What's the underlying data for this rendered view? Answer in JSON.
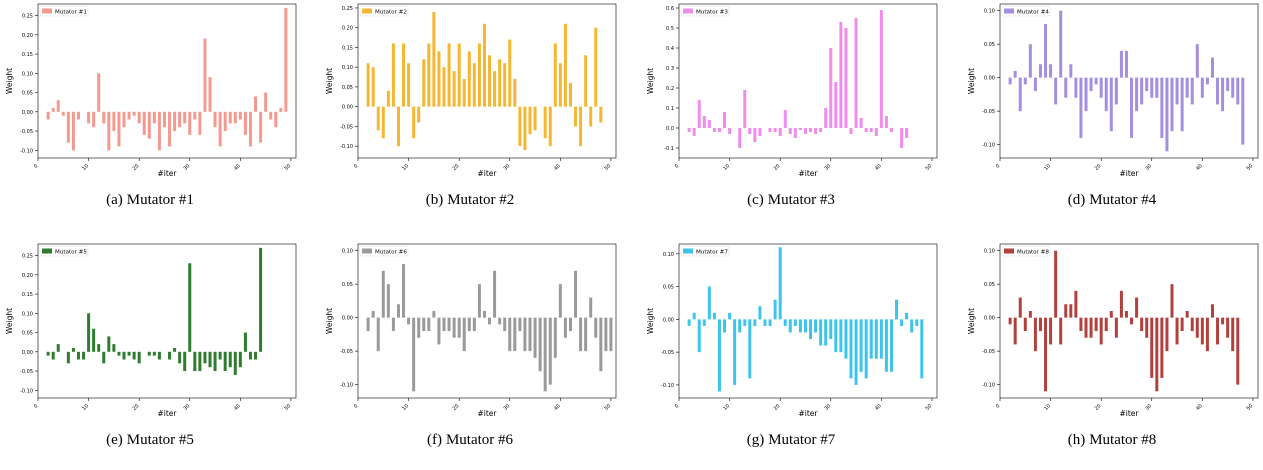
{
  "chart_data": [
    {
      "type": "bar",
      "caption_prefix": "(a)",
      "caption": "Mutator #1",
      "legend": "Mutator #1",
      "color": "#f4998e",
      "xlabel": "#iter",
      "ylabel": "Weight",
      "xlim": [
        0,
        51
      ],
      "ylim": [
        -0.12,
        0.28
      ],
      "xticks": [
        "0",
        "10",
        "20",
        "30",
        "40",
        "50"
      ],
      "yticks": [
        "-0.10",
        "-0.05",
        "0.00",
        "0.05",
        "0.10",
        "0.15",
        "0.20",
        "0.25"
      ],
      "ytick_values": [
        -0.1,
        -0.05,
        0.0,
        0.05,
        0.1,
        0.15,
        0.2,
        0.25
      ],
      "x": [
        1,
        2,
        3,
        4,
        5,
        6,
        7,
        8,
        9,
        10,
        11,
        12,
        13,
        14,
        15,
        16,
        17,
        18,
        19,
        20,
        21,
        22,
        23,
        24,
        25,
        26,
        27,
        28,
        29,
        30,
        31,
        32,
        33,
        34,
        35,
        36,
        37,
        38,
        39,
        40,
        41,
        42,
        43,
        44,
        45,
        46,
        47,
        48,
        49,
        50
      ],
      "values": [
        0,
        -0.02,
        0.01,
        0.03,
        -0.01,
        -0.08,
        -0.1,
        -0.02,
        0,
        -0.03,
        -0.04,
        0.1,
        -0.03,
        -0.1,
        -0.05,
        -0.09,
        -0.04,
        -0.02,
        -0.01,
        -0.03,
        -0.06,
        -0.07,
        -0.03,
        -0.1,
        -0.04,
        -0.09,
        -0.05,
        -0.04,
        -0.03,
        -0.06,
        -0.02,
        -0.06,
        0.19,
        0.09,
        -0.04,
        -0.09,
        -0.05,
        -0.03,
        -0.03,
        -0.02,
        -0.06,
        -0.09,
        0.04,
        -0.08,
        0.05,
        -0.02,
        -0.04,
        0.01,
        0.27,
        0
      ]
    },
    {
      "type": "bar",
      "caption_prefix": "(b)",
      "caption": "Mutator #2",
      "legend": "Mutator #2",
      "color": "#f5b731",
      "xlabel": "#iter",
      "ylabel": "Weight",
      "xlim": [
        0,
        51
      ],
      "ylim": [
        -0.13,
        0.26
      ],
      "xticks": [
        "0",
        "10",
        "20",
        "30",
        "40",
        "50"
      ],
      "yticks": [
        "-0.10",
        "-0.05",
        "0.00",
        "0.05",
        "0.10",
        "0.15",
        "0.20",
        "0.25"
      ],
      "ytick_values": [
        -0.1,
        -0.05,
        0.0,
        0.05,
        0.1,
        0.15,
        0.2,
        0.25
      ],
      "x": [
        1,
        2,
        3,
        4,
        5,
        6,
        7,
        8,
        9,
        10,
        11,
        12,
        13,
        14,
        15,
        16,
        17,
        18,
        19,
        20,
        21,
        22,
        23,
        24,
        25,
        26,
        27,
        28,
        29,
        30,
        31,
        32,
        33,
        34,
        35,
        36,
        37,
        38,
        39,
        40,
        41,
        42,
        43,
        44,
        45,
        46,
        47,
        48,
        49,
        50
      ],
      "values": [
        0,
        0.11,
        0.1,
        -0.06,
        -0.08,
        0.04,
        0.16,
        -0.1,
        0.16,
        0.11,
        -0.08,
        -0.04,
        0.12,
        0.16,
        0.24,
        0.14,
        0.1,
        0.16,
        0.09,
        0.16,
        0.07,
        0.14,
        0.11,
        0.16,
        0.21,
        0.13,
        0.09,
        0.12,
        0.11,
        0.17,
        0.07,
        -0.1,
        -0.11,
        -0.07,
        -0.06,
        0,
        -0.08,
        -0.1,
        0.16,
        0.11,
        0.21,
        0.06,
        -0.05,
        -0.1,
        0.13,
        -0.05,
        0.2,
        -0.04,
        0,
        0
      ],
      "seriesfix": true
    },
    {
      "type": "bar",
      "caption_prefix": "(c)",
      "caption": "Mutator #3",
      "legend": "Mutator #3",
      "color": "#f08ceb",
      "xlabel": "#iter",
      "ylabel": "Weight",
      "xlim": [
        0,
        51
      ],
      "ylim": [
        -0.15,
        0.62
      ],
      "xticks": [
        "0",
        "10",
        "20",
        "30",
        "40",
        "50"
      ],
      "yticks": [
        "-0.1",
        "0.0",
        "0.1",
        "0.2",
        "0.3",
        "0.4",
        "0.5",
        "0.6"
      ],
      "ytick_values": [
        -0.1,
        0.0,
        0.1,
        0.2,
        0.3,
        0.4,
        0.5,
        0.6
      ],
      "x": [
        1,
        2,
        3,
        4,
        5,
        6,
        7,
        8,
        9,
        10,
        11,
        12,
        13,
        14,
        15,
        16,
        17,
        18,
        19,
        20,
        21,
        22,
        23,
        24,
        25,
        26,
        27,
        28,
        29,
        30,
        31,
        32,
        33,
        34,
        35,
        36,
        37,
        38,
        39,
        40,
        41,
        42,
        43,
        44,
        45,
        46,
        47,
        48,
        49,
        50
      ],
      "values": [
        0,
        -0.02,
        -0.04,
        0.14,
        0.06,
        0.04,
        -0.02,
        -0.02,
        0.08,
        -0.03,
        0,
        -0.1,
        0.19,
        -0.03,
        -0.07,
        -0.04,
        0,
        -0.02,
        -0.02,
        -0.04,
        0.09,
        -0.03,
        -0.05,
        -0.01,
        -0.03,
        -0.02,
        -0.03,
        -0.02,
        0.1,
        0.4,
        0.23,
        0.53,
        0.5,
        -0.03,
        0.55,
        0.05,
        -0.02,
        -0.02,
        -0.04,
        0.59,
        0.06,
        -0.02,
        0,
        -0.1,
        -0.05,
        0,
        0,
        0,
        0,
        0
      ],
      "trimtail": true
    },
    {
      "type": "bar",
      "caption_prefix": "(d)",
      "caption": "Mutator #4",
      "legend": "Mutator #4",
      "color": "#a48ee0",
      "xlabel": "#iter",
      "ylabel": "Weight",
      "xlim": [
        0,
        51
      ],
      "ylim": [
        -0.12,
        0.11
      ],
      "xticks": [
        "0",
        "10",
        "20",
        "30",
        "40",
        "50"
      ],
      "yticks": [
        "-0.10",
        "-0.05",
        "0.00",
        "0.05",
        "0.10"
      ],
      "ytick_values": [
        -0.1,
        -0.05,
        0.0,
        0.05,
        0.1
      ],
      "x": [
        1,
        2,
        3,
        4,
        5,
        6,
        7,
        8,
        9,
        10,
        11,
        12,
        13,
        14,
        15,
        16,
        17,
        18,
        19,
        20,
        21,
        22,
        23,
        24,
        25,
        26,
        27,
        28,
        29,
        30,
        31,
        32,
        33,
        34,
        35,
        36,
        37,
        38,
        39,
        40,
        41,
        42,
        43,
        44,
        45,
        46,
        47,
        48,
        49,
        50
      ],
      "values": [
        0,
        -0.01,
        0.01,
        -0.05,
        -0.01,
        0.05,
        -0.02,
        0.02,
        0.08,
        0.02,
        -0.04,
        0.1,
        -0.03,
        0.02,
        -0.03,
        -0.09,
        -0.05,
        -0.02,
        -0.01,
        -0.03,
        -0.05,
        -0.08,
        -0.04,
        0.04,
        0.04,
        -0.09,
        -0.05,
        -0.04,
        -0.02,
        -0.03,
        -0.03,
        -0.09,
        -0.11,
        -0.08,
        -0.04,
        -0.08,
        -0.03,
        -0.04,
        0.05,
        -0.03,
        -0.01,
        0.03,
        -0.04,
        -0.05,
        -0.02,
        -0.03,
        -0.04,
        -0.1,
        0,
        0
      ]
    },
    {
      "type": "bar",
      "caption_prefix": "(e)",
      "caption": "Mutator #5",
      "legend": "Mutator #5",
      "color": "#2e7d2e",
      "xlabel": "#iter",
      "ylabel": "Weight",
      "xlim": [
        0,
        51
      ],
      "ylim": [
        -0.12,
        0.28
      ],
      "xticks": [
        "0",
        "10",
        "20",
        "30",
        "40",
        "50"
      ],
      "yticks": [
        "-0.10",
        "-0.05",
        "0.00",
        "0.05",
        "0.10",
        "0.15",
        "0.20",
        "0.25"
      ],
      "ytick_values": [
        -0.1,
        -0.05,
        0.0,
        0.05,
        0.1,
        0.15,
        0.2,
        0.25
      ],
      "x": [
        1,
        2,
        3,
        4,
        5,
        6,
        7,
        8,
        9,
        10,
        11,
        12,
        13,
        14,
        15,
        16,
        17,
        18,
        19,
        20,
        21,
        22,
        23,
        24,
        25,
        26,
        27,
        28,
        29,
        30,
        31,
        32,
        33,
        34,
        35,
        36,
        37,
        38,
        39,
        40,
        41,
        42,
        43,
        44,
        45,
        46,
        47,
        48,
        49,
        50
      ],
      "values": [
        0,
        -0.01,
        -0.02,
        0.02,
        0,
        -0.03,
        0.01,
        -0.02,
        -0.02,
        0.1,
        0.06,
        0.02,
        -0.03,
        0.04,
        0.02,
        -0.01,
        -0.02,
        -0.01,
        -0.02,
        -0.03,
        0,
        -0.01,
        -0.01,
        -0.02,
        0,
        -0.02,
        0.01,
        -0.03,
        -0.05,
        0.23,
        -0.05,
        -0.05,
        -0.03,
        -0.04,
        -0.05,
        -0.02,
        -0.05,
        -0.04,
        -0.06,
        -0.04,
        0.05,
        -0.02,
        -0.02,
        0.27,
        0,
        0,
        0,
        0,
        0,
        0
      ],
      "e": true
    },
    {
      "type": "bar",
      "caption_prefix": "(f)",
      "caption": "Mutator #6",
      "legend": "Mutator #6",
      "color": "#9a9a9a",
      "xlabel": "#iter",
      "ylabel": "Weight",
      "xlim": [
        0,
        51
      ],
      "ylim": [
        -0.12,
        0.11
      ],
      "xticks": [
        "0",
        "10",
        "20",
        "30",
        "40",
        "50"
      ],
      "yticks": [
        "-0.10",
        "-0.05",
        "0.00",
        "0.05",
        "0.10"
      ],
      "ytick_values": [
        -0.1,
        -0.05,
        0.0,
        0.05,
        0.1
      ],
      "x": [
        1,
        2,
        3,
        4,
        5,
        6,
        7,
        8,
        9,
        10,
        11,
        12,
        13,
        14,
        15,
        16,
        17,
        18,
        19,
        20,
        21,
        22,
        23,
        24,
        25,
        26,
        27,
        28,
        29,
        30,
        31,
        32,
        33,
        34,
        35,
        36,
        37,
        38,
        39,
        40,
        41,
        42,
        43,
        44,
        45,
        46,
        47,
        48,
        49,
        50
      ],
      "values": [
        0,
        -0.02,
        0.01,
        -0.05,
        0.07,
        0.05,
        -0.02,
        0.02,
        0.08,
        -0.01,
        -0.11,
        -0.03,
        -0.02,
        -0.02,
        0.01,
        -0.04,
        -0.02,
        -0.02,
        -0.03,
        -0.03,
        -0.05,
        -0.02,
        -0.02,
        0.05,
        0.01,
        -0.01,
        0.07,
        -0.01,
        -0.02,
        -0.05,
        -0.05,
        -0.02,
        -0.05,
        -0.05,
        -0.06,
        -0.08,
        -0.11,
        -0.1,
        -0.06,
        0.05,
        -0.03,
        -0.02,
        0.07,
        -0.05,
        -0.05,
        0.03,
        -0.03,
        -0.08,
        -0.05,
        -0.05
      ]
    },
    {
      "type": "bar",
      "caption_prefix": "(g)",
      "caption": "Mutator #7",
      "legend": "Mutator #7",
      "color": "#3cc4ea",
      "xlabel": "#iter",
      "ylabel": "Weight",
      "xlim": [
        0,
        51
      ],
      "ylim": [
        -0.12,
        0.115
      ],
      "xticks": [
        "0",
        "10",
        "20",
        "30",
        "40",
        "50"
      ],
      "yticks": [
        "-0.10",
        "-0.05",
        "0.00",
        "0.05",
        "0.10"
      ],
      "ytick_values": [
        -0.1,
        -0.05,
        0.0,
        0.05,
        0.1
      ],
      "x": [
        1,
        2,
        3,
        4,
        5,
        6,
        7,
        8,
        9,
        10,
        11,
        12,
        13,
        14,
        15,
        16,
        17,
        18,
        19,
        20,
        21,
        22,
        23,
        24,
        25,
        26,
        27,
        28,
        29,
        30,
        31,
        32,
        33,
        34,
        35,
        36,
        37,
        38,
        39,
        40,
        41,
        42,
        43,
        44,
        45,
        46,
        47,
        48,
        49,
        50
      ],
      "values": [
        0,
        -0.01,
        0.01,
        -0.05,
        -0.01,
        0.05,
        0.01,
        -0.11,
        -0.02,
        0.01,
        -0.1,
        -0.02,
        -0.01,
        -0.09,
        -0.01,
        0.02,
        -0.01,
        -0.01,
        0.03,
        0.11,
        -0.01,
        -0.02,
        -0.01,
        -0.02,
        -0.02,
        -0.03,
        -0.02,
        -0.04,
        -0.04,
        -0.03,
        -0.05,
        -0.05,
        -0.06,
        -0.09,
        -0.1,
        -0.08,
        -0.09,
        -0.06,
        -0.06,
        -0.06,
        -0.08,
        -0.08,
        0.03,
        -0.01,
        0.01,
        -0.02,
        -0.01,
        -0.09,
        0,
        0
      ]
    },
    {
      "type": "bar",
      "caption_prefix": "(h)",
      "caption": "Mutator #8",
      "legend": "Mutator #8",
      "color": "#b2413e",
      "xlabel": "#iter",
      "ylabel": "Weight",
      "xlim": [
        0,
        51
      ],
      "ylim": [
        -0.12,
        0.11
      ],
      "xticks": [
        "0",
        "10",
        "20",
        "30",
        "40",
        "50"
      ],
      "yticks": [
        "-0.10",
        "-0.05",
        "0.00",
        "0.05",
        "0.10"
      ],
      "ytick_values": [
        -0.1,
        -0.05,
        0.0,
        0.05,
        0.1
      ],
      "x": [
        1,
        2,
        3,
        4,
        5,
        6,
        7,
        8,
        9,
        10,
        11,
        12,
        13,
        14,
        15,
        16,
        17,
        18,
        19,
        20,
        21,
        22,
        23,
        24,
        25,
        26,
        27,
        28,
        29,
        30,
        31,
        32,
        33,
        34,
        35,
        36,
        37,
        38,
        39,
        40,
        41,
        42,
        43,
        44,
        45,
        46,
        47,
        48,
        49,
        50
      ],
      "values": [
        0,
        -0.01,
        -0.04,
        0.03,
        -0.02,
        0.01,
        -0.05,
        -0.02,
        -0.11,
        -0.04,
        0.1,
        -0.04,
        0.02,
        0.02,
        0.04,
        -0.02,
        -0.03,
        -0.03,
        -0.02,
        -0.04,
        -0.02,
        0.01,
        -0.03,
        0.04,
        0.01,
        -0.01,
        0.03,
        -0.02,
        -0.03,
        -0.09,
        -0.11,
        -0.09,
        -0.05,
        0.05,
        -0.04,
        -0.02,
        0.01,
        -0.02,
        -0.03,
        -0.04,
        -0.05,
        0.02,
        -0.04,
        -0.01,
        -0.03,
        -0.05,
        -0.1,
        0,
        0,
        0
      ]
    }
  ]
}
